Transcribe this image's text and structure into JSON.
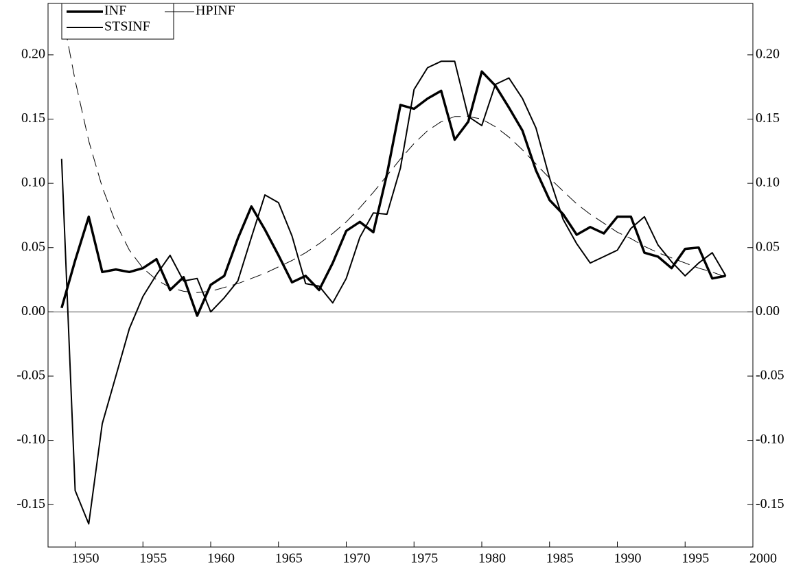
{
  "chart_data": {
    "type": "line",
    "x": [
      1949,
      1950,
      1951,
      1952,
      1953,
      1954,
      1955,
      1956,
      1957,
      1958,
      1959,
      1960,
      1961,
      1962,
      1963,
      1964,
      1965,
      1966,
      1967,
      1968,
      1969,
      1970,
      1971,
      1972,
      1973,
      1974,
      1975,
      1976,
      1977,
      1978,
      1979,
      1980,
      1981,
      1982,
      1983,
      1984,
      1985,
      1986,
      1987,
      1988,
      1989,
      1990,
      1991,
      1992,
      1993,
      1994,
      1995,
      1996,
      1997,
      1998
    ],
    "series": [
      {
        "name": "INF",
        "color": "#000000",
        "width": 3.5,
        "dash": false,
        "values": [
          0.003,
          0.04,
          0.074,
          0.031,
          0.033,
          0.031,
          0.034,
          0.041,
          0.017,
          0.027,
          -0.003,
          0.021,
          0.028,
          0.057,
          0.082,
          0.064,
          0.044,
          0.023,
          0.028,
          0.017,
          0.038,
          0.063,
          0.07,
          0.062,
          0.107,
          0.161,
          0.158,
          0.166,
          0.172,
          0.134,
          0.148,
          0.187,
          0.176,
          0.159,
          0.141,
          0.11,
          0.087,
          0.076,
          0.06,
          0.066,
          0.061,
          0.074,
          0.074,
          0.046,
          0.043,
          0.034,
          0.049,
          0.05,
          0.026,
          0.028
        ]
      },
      {
        "name": "HPINF",
        "color": "#000000",
        "width": 1,
        "dash": true,
        "values": [
          0.235,
          0.18,
          0.133,
          0.097,
          0.069,
          0.048,
          0.034,
          0.025,
          0.019,
          0.016,
          0.015,
          0.016,
          0.019,
          0.022,
          0.026,
          0.03,
          0.035,
          0.04,
          0.046,
          0.053,
          0.061,
          0.07,
          0.081,
          0.093,
          0.106,
          0.119,
          0.131,
          0.141,
          0.148,
          0.152,
          0.152,
          0.15,
          0.144,
          0.136,
          0.126,
          0.115,
          0.104,
          0.094,
          0.084,
          0.076,
          0.069,
          0.062,
          0.057,
          0.051,
          0.046,
          0.042,
          0.038,
          0.034,
          0.031,
          0.027
        ]
      },
      {
        "name": "STSINF",
        "color": "#000000",
        "width": 2,
        "dash": false,
        "values": [
          0.119,
          -0.139,
          -0.165,
          -0.087,
          -0.05,
          -0.013,
          0.012,
          0.029,
          0.044,
          0.024,
          0.026,
          0.0,
          0.011,
          0.024,
          0.058,
          0.091,
          0.085,
          0.059,
          0.022,
          0.02,
          0.007,
          0.026,
          0.058,
          0.077,
          0.076,
          0.112,
          0.173,
          0.19,
          0.195,
          0.195,
          0.152,
          0.145,
          0.177,
          0.182,
          0.166,
          0.143,
          0.104,
          0.072,
          0.053,
          0.038,
          0.043,
          0.048,
          0.065,
          0.074,
          0.052,
          0.039,
          0.028,
          0.038,
          0.046,
          0.028
        ]
      }
    ],
    "xlim": [
      1948,
      2000
    ],
    "xticks": [
      1950,
      1955,
      1960,
      1965,
      1970,
      1975,
      1980,
      1985,
      1990,
      1995,
      2000
    ],
    "ylim": [
      -0.183,
      0.24
    ],
    "yticks": [
      {
        "value": -0.15,
        "label": "-0.15"
      },
      {
        "value": -0.1,
        "label": "-0.10"
      },
      {
        "value": -0.05,
        "label": "-0.05"
      },
      {
        "value": 0,
        "label": "0.00"
      },
      {
        "value": 0.05,
        "label": "0.05"
      },
      {
        "value": 0.1,
        "label": "0.10"
      },
      {
        "value": 0.15,
        "label": "0.15"
      },
      {
        "value": 0.2,
        "label": "0.20"
      }
    ],
    "zero_line": true,
    "right_axis_labels": true,
    "legend": "top-left"
  }
}
